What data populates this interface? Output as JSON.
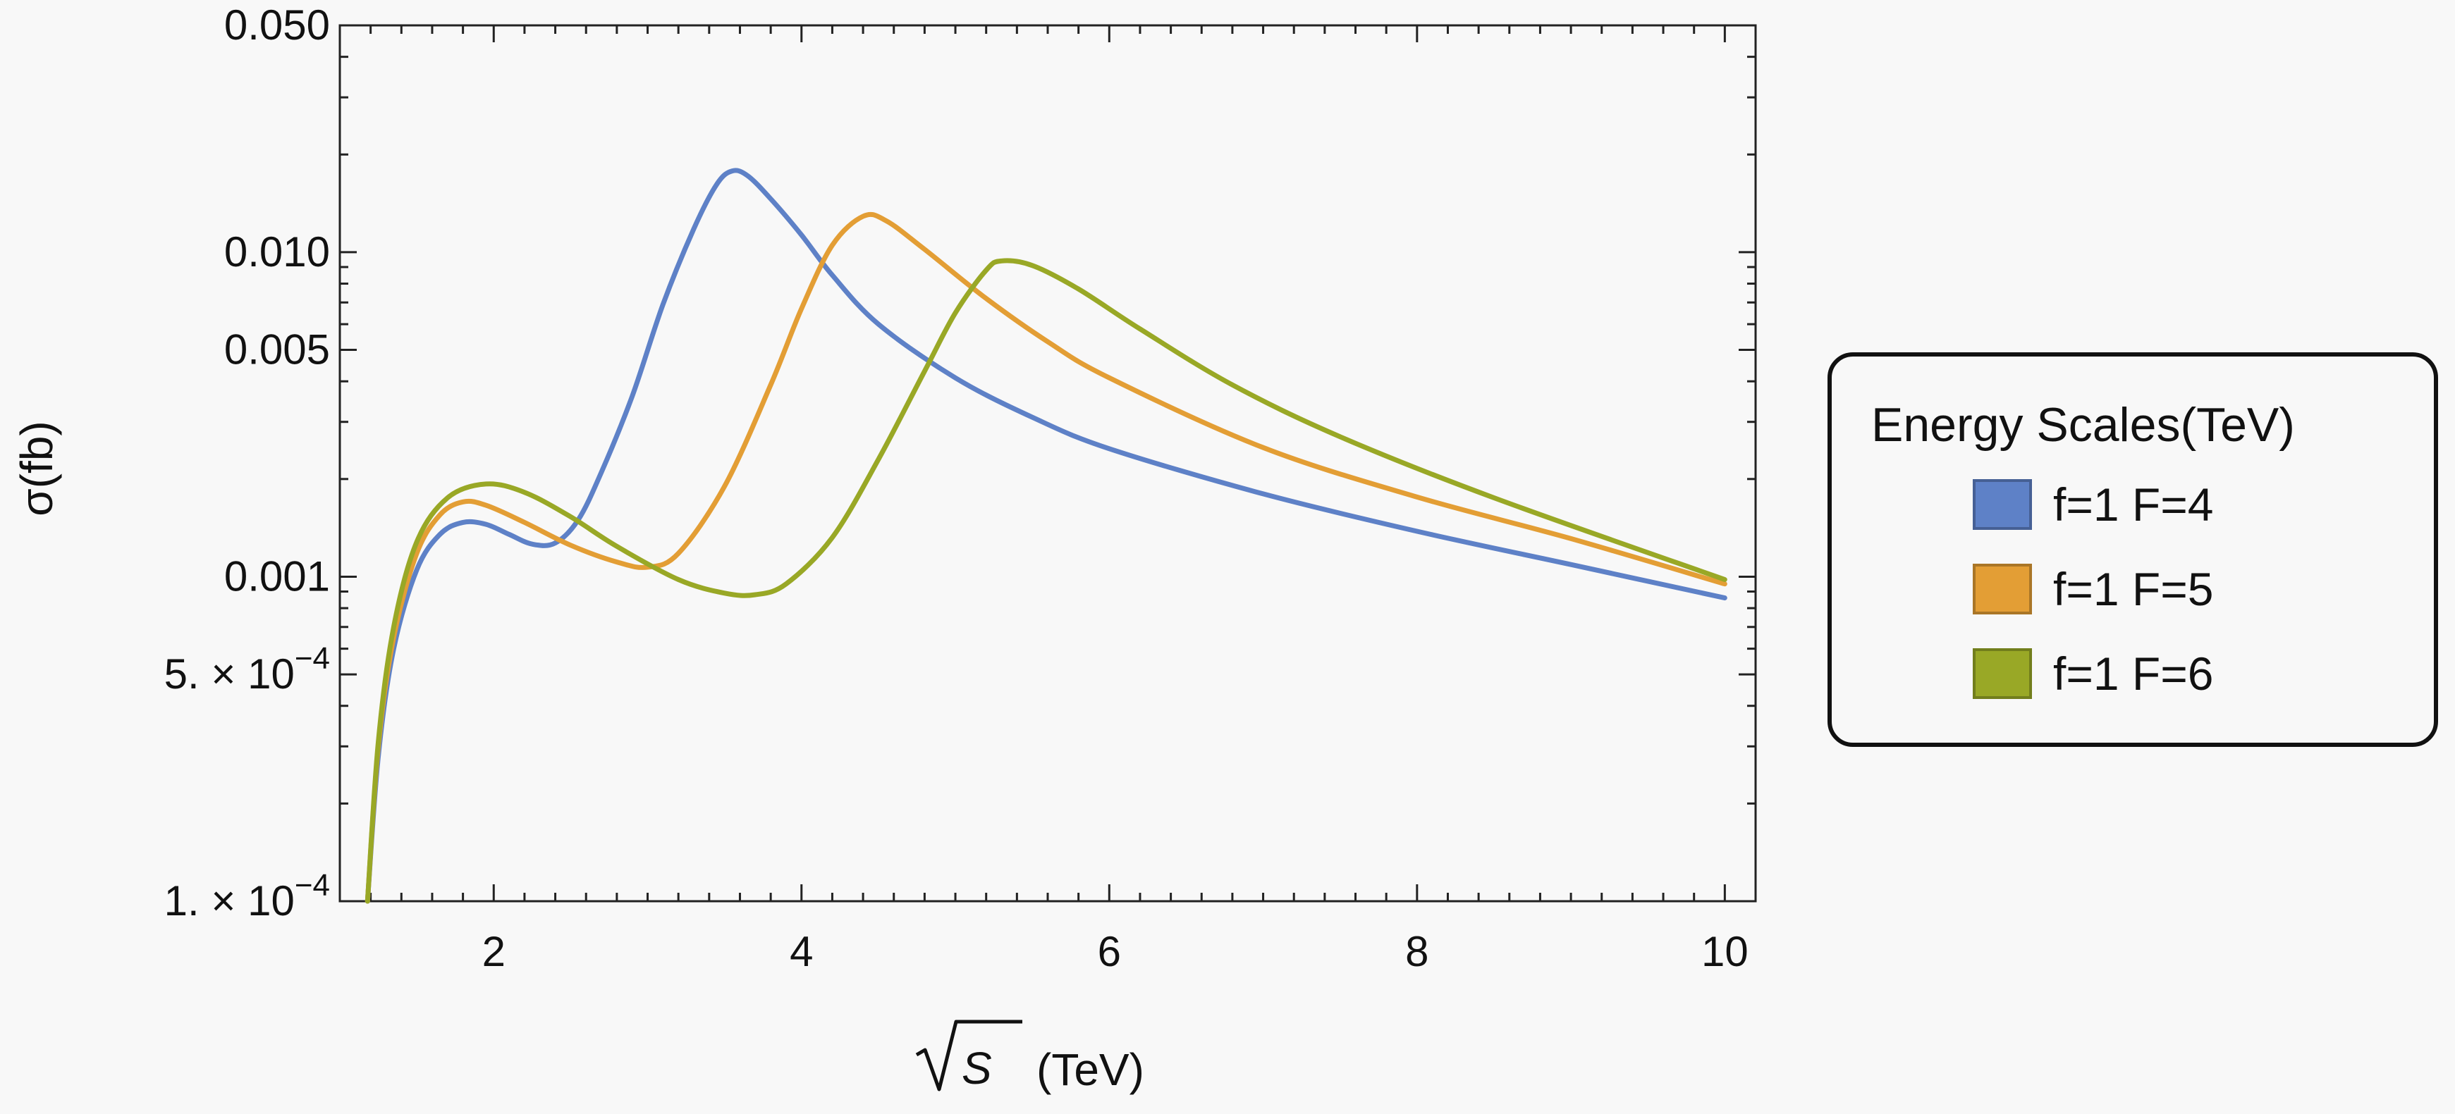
{
  "chart_data": {
    "type": "line",
    "title": "",
    "xlabel": "(TeV)",
    "xlabel_symbol": "S",
    "ylabel": "σ(fb)",
    "xlim": [
      1.0,
      10.2
    ],
    "ylim": [
      0.0001,
      0.05
    ],
    "yscale": "log",
    "grid": false,
    "legend_title": "Energy Scales(TeV)",
    "legend_position": "right",
    "x_ticks": [
      {
        "value": 2,
        "label": "2"
      },
      {
        "value": 4,
        "label": "4"
      },
      {
        "value": 6,
        "label": "6"
      },
      {
        "value": 8,
        "label": "8"
      },
      {
        "value": 10,
        "label": "10"
      }
    ],
    "y_ticks": [
      {
        "value": 0.0001,
        "base": "1. × 10",
        "exp": "−4"
      },
      {
        "value": 0.0005,
        "base": "5. × 10",
        "exp": "−4"
      },
      {
        "value": 0.001,
        "label": "0.001"
      },
      {
        "value": 0.005,
        "label": "0.005"
      },
      {
        "value": 0.01,
        "label": "0.010"
      },
      {
        "value": 0.05,
        "label": "0.050"
      }
    ],
    "series": [
      {
        "name": "f=1 F=4",
        "color": "#5e81c7",
        "points": [
          [
            1.18,
            0.0001
          ],
          [
            1.25,
            0.00028
          ],
          [
            1.35,
            0.0006
          ],
          [
            1.5,
            0.00105
          ],
          [
            1.65,
            0.00135
          ],
          [
            1.8,
            0.00147
          ],
          [
            1.95,
            0.00145
          ],
          [
            2.1,
            0.00135
          ],
          [
            2.25,
            0.00126
          ],
          [
            2.4,
            0.00127
          ],
          [
            2.55,
            0.0015
          ],
          [
            2.7,
            0.0021
          ],
          [
            2.9,
            0.0036
          ],
          [
            3.1,
            0.0069
          ],
          [
            3.3,
            0.0118
          ],
          [
            3.45,
            0.0162
          ],
          [
            3.55,
            0.0178
          ],
          [
            3.65,
            0.0172
          ],
          [
            3.8,
            0.0146
          ],
          [
            4.0,
            0.0113
          ],
          [
            4.2,
            0.0085
          ],
          [
            4.5,
            0.006
          ],
          [
            5.0,
            0.0041
          ],
          [
            5.5,
            0.0031
          ],
          [
            6.0,
            0.00248
          ],
          [
            7.0,
            0.0018
          ],
          [
            8.0,
            0.00138
          ],
          [
            9.0,
            0.00109
          ],
          [
            10.0,
            0.00086
          ]
        ]
      },
      {
        "name": "f=1 F=5",
        "color": "#e39e35",
        "points": [
          [
            1.18,
            0.0001
          ],
          [
            1.25,
            0.0003
          ],
          [
            1.35,
            0.00065
          ],
          [
            1.5,
            0.00118
          ],
          [
            1.65,
            0.00155
          ],
          [
            1.8,
            0.0017
          ],
          [
            1.95,
            0.00166
          ],
          [
            2.2,
            0.00147
          ],
          [
            2.5,
            0.00125
          ],
          [
            2.8,
            0.00111
          ],
          [
            3.0,
            0.00107
          ],
          [
            3.2,
            0.00118
          ],
          [
            3.5,
            0.0019
          ],
          [
            3.8,
            0.0039
          ],
          [
            4.0,
            0.0067
          ],
          [
            4.2,
            0.0105
          ],
          [
            4.4,
            0.0129
          ],
          [
            4.55,
            0.0125
          ],
          [
            4.8,
            0.0102
          ],
          [
            5.2,
            0.0072
          ],
          [
            5.6,
            0.0053
          ],
          [
            6.0,
            0.0041
          ],
          [
            7.0,
            0.0025
          ],
          [
            8.0,
            0.00176
          ],
          [
            9.0,
            0.00131
          ],
          [
            10.0,
            0.00095
          ]
        ]
      },
      {
        "name": "f=1 F=6",
        "color": "#99a826",
        "points": [
          [
            1.18,
            0.0001
          ],
          [
            1.25,
            0.00031
          ],
          [
            1.35,
            0.0007
          ],
          [
            1.5,
            0.00128
          ],
          [
            1.7,
            0.00175
          ],
          [
            1.95,
            0.00193
          ],
          [
            2.2,
            0.00182
          ],
          [
            2.5,
            0.00153
          ],
          [
            2.8,
            0.00124
          ],
          [
            3.2,
            0.00098
          ],
          [
            3.5,
            0.00089
          ],
          [
            3.7,
            0.00088
          ],
          [
            3.9,
            0.00095
          ],
          [
            4.2,
            0.00132
          ],
          [
            4.5,
            0.0023
          ],
          [
            4.8,
            0.0043
          ],
          [
            5.0,
            0.0065
          ],
          [
            5.2,
            0.0088
          ],
          [
            5.3,
            0.0094
          ],
          [
            5.5,
            0.0091
          ],
          [
            5.8,
            0.0077
          ],
          [
            6.2,
            0.0058
          ],
          [
            6.8,
            0.0039
          ],
          [
            7.5,
            0.0027
          ],
          [
            8.5,
            0.00175
          ],
          [
            10.0,
            0.00098
          ]
        ]
      }
    ]
  }
}
